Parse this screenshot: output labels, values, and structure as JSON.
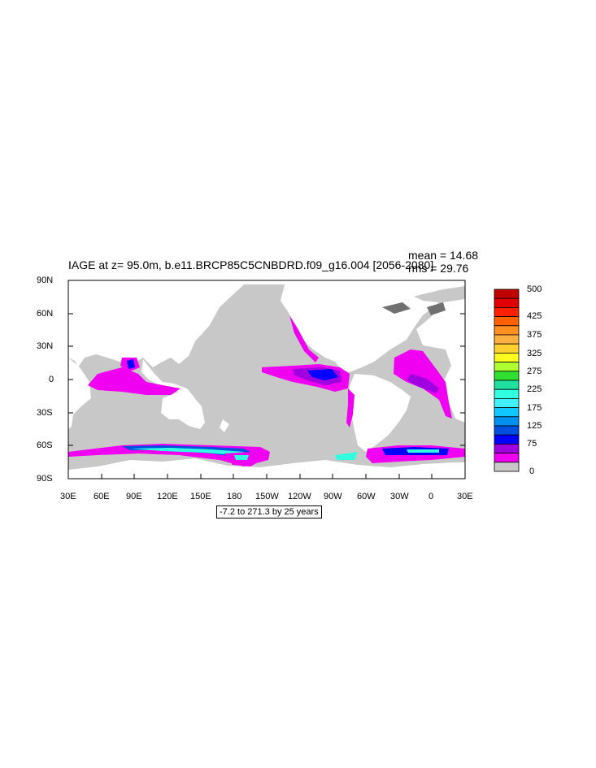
{
  "plot": {
    "title": "IAGE at z=  95.0m, b.e11.BRCP85C5CNBDRD.f09_g16.004 [2056-2080]",
    "mean_text": "mean = 14.68",
    "rms_text": "rms = 29.76",
    "range_text": "-7.2 to 271.3 by 25 years"
  },
  "axes": {
    "y_labels": [
      "90N",
      "60N",
      "30N",
      "0",
      "30S",
      "60S",
      "90S"
    ],
    "x_labels": [
      "30E",
      "60E",
      "90E",
      "120E",
      "150E",
      "180",
      "150W",
      "120W",
      "90W",
      "60W",
      "30W",
      "0",
      "30E"
    ]
  },
  "colorbar": {
    "labels": [
      "500",
      "425",
      "375",
      "325",
      "275",
      "225",
      "175",
      "125",
      "75",
      "0"
    ],
    "colors": [
      "#c00000",
      "#e00000",
      "#ff2000",
      "#ff6000",
      "#ff9020",
      "#ffb040",
      "#ffd030",
      "#ffff20",
      "#b0ff30",
      "#30e030",
      "#20e0a0",
      "#30ffe0",
      "#40f0ff",
      "#10c8ff",
      "#0090f0",
      "#0050e0",
      "#0000ff",
      "#a000e0",
      "#f000f0",
      "#c8c8c8"
    ]
  },
  "colors": {
    "land": "#ffffff",
    "ocean_low": "#c8c8c8",
    "ocean_dark": "#707070",
    "magenta": "#f000f0",
    "purple": "#a000e0",
    "blue": "#0000ff",
    "cyan": "#30ffe0"
  }
}
